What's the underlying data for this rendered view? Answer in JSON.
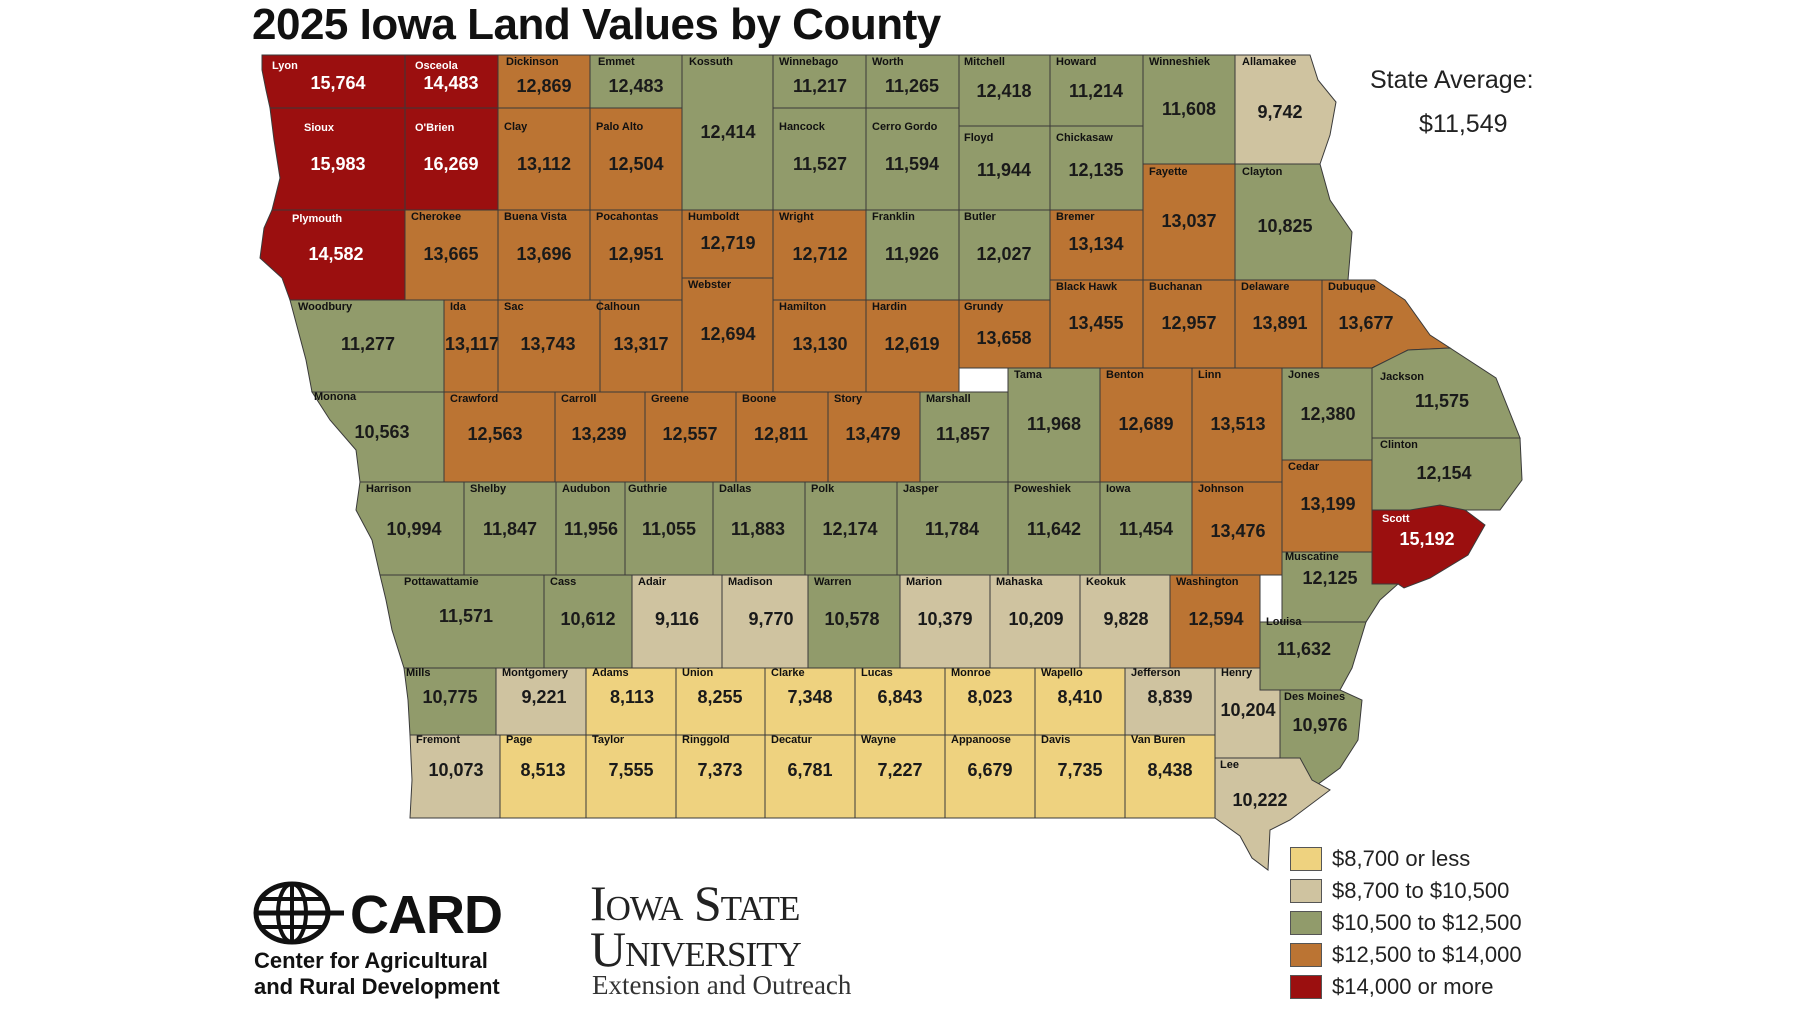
{
  "title": "2025 Iowa Land Values by County",
  "state_average": {
    "label": "State Average:",
    "value": "$11,549"
  },
  "colors": {
    "c1": "#eed27f",
    "c2": "#cfc3a0",
    "c3": "#919b6b",
    "c4": "#bb7433",
    "c5": "#9b0f0f",
    "border": "#3a3a3a"
  },
  "legend": [
    {
      "label": "$8,700 or less",
      "color_key": "c1"
    },
    {
      "label": "$8,700 to $10,500",
      "color_key": "c2"
    },
    {
      "label": "$10,500 to $12,500",
      "color_key": "c3"
    },
    {
      "label": "$12,500 to $14,000",
      "color_key": "c4"
    },
    {
      "label": "$14,000 or more",
      "color_key": "c5"
    }
  ],
  "counties": [
    {
      "name": "Lyon",
      "value": "15,764",
      "tier": "c5"
    },
    {
      "name": "Osceola",
      "value": "14,483",
      "tier": "c5"
    },
    {
      "name": "Dickinson",
      "value": "12,869",
      "tier": "c4"
    },
    {
      "name": "Emmet",
      "value": "12,483",
      "tier": "c3"
    },
    {
      "name": "Kossuth",
      "value": "12,414",
      "tier": "c3"
    },
    {
      "name": "Winnebago",
      "value": "11,217",
      "tier": "c3"
    },
    {
      "name": "Worth",
      "value": "11,265",
      "tier": "c3"
    },
    {
      "name": "Mitchell",
      "value": "12,418",
      "tier": "c3"
    },
    {
      "name": "Howard",
      "value": "11,214",
      "tier": "c3"
    },
    {
      "name": "Winneshiek",
      "value": "11,608",
      "tier": "c3"
    },
    {
      "name": "Allamakee",
      "value": "9,742",
      "tier": "c2"
    },
    {
      "name": "Sioux",
      "value": "15,983",
      "tier": "c5"
    },
    {
      "name": "O'Brien",
      "value": "16,269",
      "tier": "c5"
    },
    {
      "name": "Clay",
      "value": "13,112",
      "tier": "c4"
    },
    {
      "name": "Palo Alto",
      "value": "12,504",
      "tier": "c4"
    },
    {
      "name": "Hancock",
      "value": "11,527",
      "tier": "c3"
    },
    {
      "name": "Cerro Gordo",
      "value": "11,594",
      "tier": "c3"
    },
    {
      "name": "Floyd",
      "value": "11,944",
      "tier": "c3"
    },
    {
      "name": "Chickasaw",
      "value": "12,135",
      "tier": "c3"
    },
    {
      "name": "Fayette",
      "value": "13,037",
      "tier": "c4"
    },
    {
      "name": "Clayton",
      "value": "10,825",
      "tier": "c3"
    },
    {
      "name": "Plymouth",
      "value": "14,582",
      "tier": "c5"
    },
    {
      "name": "Cherokee",
      "value": "13,665",
      "tier": "c4"
    },
    {
      "name": "Buena Vista",
      "value": "13,696",
      "tier": "c4"
    },
    {
      "name": "Pocahontas",
      "value": "12,951",
      "tier": "c4"
    },
    {
      "name": "Humboldt",
      "value": "12,719",
      "tier": "c4"
    },
    {
      "name": "Wright",
      "value": "12,712",
      "tier": "c4"
    },
    {
      "name": "Franklin",
      "value": "11,926",
      "tier": "c3"
    },
    {
      "name": "Butler",
      "value": "12,027",
      "tier": "c3"
    },
    {
      "name": "Bremer",
      "value": "13,134",
      "tier": "c4"
    },
    {
      "name": "Black Hawk",
      "value": "13,455",
      "tier": "c4"
    },
    {
      "name": "Buchanan",
      "value": "12,957",
      "tier": "c4"
    },
    {
      "name": "Delaware",
      "value": "13,891",
      "tier": "c4"
    },
    {
      "name": "Dubuque",
      "value": "13,677",
      "tier": "c4"
    },
    {
      "name": "Woodbury",
      "value": "11,277",
      "tier": "c3"
    },
    {
      "name": "Ida",
      "value": "13,117",
      "tier": "c4"
    },
    {
      "name": "Sac",
      "value": "13,743",
      "tier": "c4"
    },
    {
      "name": "Calhoun",
      "value": "13,317",
      "tier": "c4"
    },
    {
      "name": "Webster",
      "value": "12,694",
      "tier": "c4"
    },
    {
      "name": "Hamilton",
      "value": "13,130",
      "tier": "c4"
    },
    {
      "name": "Hardin",
      "value": "12,619",
      "tier": "c4"
    },
    {
      "name": "Grundy",
      "value": "13,658",
      "tier": "c4"
    },
    {
      "name": "Monona",
      "value": "10,563",
      "tier": "c3"
    },
    {
      "name": "Crawford",
      "value": "12,563",
      "tier": "c4"
    },
    {
      "name": "Carroll",
      "value": "13,239",
      "tier": "c4"
    },
    {
      "name": "Greene",
      "value": "12,557",
      "tier": "c4"
    },
    {
      "name": "Boone",
      "value": "12,811",
      "tier": "c4"
    },
    {
      "name": "Story",
      "value": "13,479",
      "tier": "c4"
    },
    {
      "name": "Marshall",
      "value": "11,857",
      "tier": "c3"
    },
    {
      "name": "Tama",
      "value": "11,968",
      "tier": "c3"
    },
    {
      "name": "Benton",
      "value": "12,689",
      "tier": "c4"
    },
    {
      "name": "Linn",
      "value": "13,513",
      "tier": "c4"
    },
    {
      "name": "Jones",
      "value": "12,380",
      "tier": "c3"
    },
    {
      "name": "Jackson",
      "value": "11,575",
      "tier": "c3"
    },
    {
      "name": "Clinton",
      "value": "12,154",
      "tier": "c3"
    },
    {
      "name": "Harrison",
      "value": "10,994",
      "tier": "c3"
    },
    {
      "name": "Shelby",
      "value": "11,847",
      "tier": "c3"
    },
    {
      "name": "Audubon",
      "value": "11,956",
      "tier": "c3"
    },
    {
      "name": "Guthrie",
      "value": "11,055",
      "tier": "c3"
    },
    {
      "name": "Dallas",
      "value": "11,883",
      "tier": "c3"
    },
    {
      "name": "Polk",
      "value": "12,174",
      "tier": "c3"
    },
    {
      "name": "Jasper",
      "value": "11,784",
      "tier": "c3"
    },
    {
      "name": "Poweshiek",
      "value": "11,642",
      "tier": "c3"
    },
    {
      "name": "Iowa",
      "value": "11,454",
      "tier": "c3"
    },
    {
      "name": "Johnson",
      "value": "13,476",
      "tier": "c4"
    },
    {
      "name": "Cedar",
      "value": "13,199",
      "tier": "c4"
    },
    {
      "name": "Scott",
      "value": "15,192",
      "tier": "c5"
    },
    {
      "name": "Muscatine",
      "value": "12,125",
      "tier": "c3"
    },
    {
      "name": "Pottawattamie",
      "value": "11,571",
      "tier": "c3"
    },
    {
      "name": "Cass",
      "value": "10,612",
      "tier": "c3"
    },
    {
      "name": "Adair",
      "value": "9,116",
      "tier": "c2"
    },
    {
      "name": "Madison",
      "value": "9,770",
      "tier": "c2"
    },
    {
      "name": "Warren",
      "value": "10,578",
      "tier": "c3"
    },
    {
      "name": "Marion",
      "value": "10,379",
      "tier": "c2"
    },
    {
      "name": "Mahaska",
      "value": "10,209",
      "tier": "c2"
    },
    {
      "name": "Keokuk",
      "value": "9,828",
      "tier": "c2"
    },
    {
      "name": "Washington",
      "value": "12,594",
      "tier": "c4"
    },
    {
      "name": "Louisa",
      "value": "11,632",
      "tier": "c3"
    },
    {
      "name": "Mills",
      "value": "10,775",
      "tier": "c3"
    },
    {
      "name": "Montgomery",
      "value": "9,221",
      "tier": "c2"
    },
    {
      "name": "Adams",
      "value": "8,113",
      "tier": "c1"
    },
    {
      "name": "Union",
      "value": "8,255",
      "tier": "c1"
    },
    {
      "name": "Clarke",
      "value": "7,348",
      "tier": "c1"
    },
    {
      "name": "Lucas",
      "value": "6,843",
      "tier": "c1"
    },
    {
      "name": "Monroe",
      "value": "8,023",
      "tier": "c1"
    },
    {
      "name": "Wapello",
      "value": "8,410",
      "tier": "c1"
    },
    {
      "name": "Jefferson",
      "value": "8,839",
      "tier": "c2"
    },
    {
      "name": "Henry",
      "value": "10,204",
      "tier": "c2"
    },
    {
      "name": "Des Moines",
      "value": "10,976",
      "tier": "c3"
    },
    {
      "name": "Fremont",
      "value": "10,073",
      "tier": "c2"
    },
    {
      "name": "Page",
      "value": "8,513",
      "tier": "c1"
    },
    {
      "name": "Taylor",
      "value": "7,555",
      "tier": "c1"
    },
    {
      "name": "Ringgold",
      "value": "7,373",
      "tier": "c1"
    },
    {
      "name": "Decatur",
      "value": "6,781",
      "tier": "c1"
    },
    {
      "name": "Wayne",
      "value": "7,227",
      "tier": "c1"
    },
    {
      "name": "Appanoose",
      "value": "6,679",
      "tier": "c1"
    },
    {
      "name": "Davis",
      "value": "7,735",
      "tier": "c1"
    },
    {
      "name": "Van Buren",
      "value": "8,438",
      "tier": "c1"
    },
    {
      "name": "Lee",
      "value": "10,222",
      "tier": "c2"
    }
  ],
  "logos": {
    "card": {
      "word": "CARD",
      "line1": "Center for Agricultural",
      "line2": "and Rural Development"
    },
    "isu": {
      "line1": "Iowa State",
      "line2": "University",
      "line3": "Extension and Outreach"
    }
  }
}
